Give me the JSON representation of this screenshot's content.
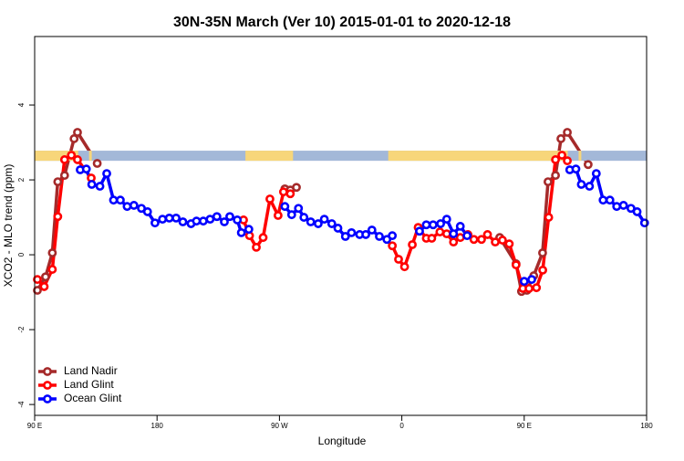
{
  "chart_data": {
    "type": "line",
    "title": "30N-35N March (Ver 10)   2015-01-01 to 2020-12-18",
    "x_label": "Longitude",
    "y_label": "XCO2 - MLO trend (ppm)",
    "xlim": [
      90,
      540
    ],
    "ylim": [
      -4.29,
      5.83
    ],
    "xticks": [
      {
        "value": 90,
        "label": "90 E"
      },
      {
        "value": 180,
        "label": "180"
      },
      {
        "value": 270,
        "label": "90 W"
      },
      {
        "value": 360,
        "label": "0"
      },
      {
        "value": 450,
        "label": "90 E"
      },
      {
        "value": 540,
        "label": "180"
      }
    ],
    "yticks": [
      -4,
      -2,
      0,
      2,
      4
    ],
    "legend": "bottom-left",
    "band": {
      "ylim": [
        2.51,
        2.78
      ],
      "ocean_color": "#a3b8d8",
      "land_color": "#f7d67a",
      "land_ranges": [
        [
          90,
          122
        ],
        [
          130,
          132
        ],
        [
          245,
          280
        ],
        [
          350,
          482
        ],
        [
          490,
          492
        ]
      ]
    },
    "series": [
      {
        "name": "Land Nadir",
        "color": "#a52a2a",
        "x": [
          92,
          98,
          103,
          107,
          112,
          119,
          121.5,
          136,
          null,
          274,
          278,
          282.5,
          null,
          432,
          444,
          448,
          452,
          457,
          463.5,
          467.5,
          473,
          477,
          481.7,
          497
        ],
        "values": [
          -0.95,
          -0.59,
          0.05,
          1.95,
          2.12,
          3.1,
          3.27,
          2.44,
          null,
          1.76,
          1.73,
          1.8,
          null,
          0.46,
          -0.24,
          -0.98,
          -0.95,
          -0.56,
          0.05,
          1.95,
          2.12,
          3.1,
          3.27,
          2.41
        ]
      },
      {
        "name": "Land Glint",
        "color": "#ff0000",
        "x": [
          92,
          97,
          103,
          107,
          112,
          117,
          121.5,
          131.6,
          null,
          243.6,
          248,
          253,
          258,
          263,
          269,
          273,
          278,
          null,
          353,
          357.6,
          362,
          367.7,
          372,
          378,
          382,
          388,
          393,
          398,
          403,
          408.6,
          413,
          418.6,
          423,
          428.7,
          434,
          439,
          444,
          449,
          453.5,
          459,
          463.6,
          468,
          473,
          477.7,
          481.7
        ],
        "values": [
          -0.66,
          -0.85,
          -0.39,
          1.02,
          2.54,
          2.66,
          2.54,
          2.05,
          null,
          0.93,
          0.51,
          0.2,
          0.46,
          1.49,
          1.05,
          1.68,
          1.63,
          null,
          0.24,
          -0.12,
          -0.32,
          0.27,
          0.73,
          0.44,
          0.44,
          0.61,
          0.56,
          0.34,
          0.46,
          0.54,
          0.41,
          0.41,
          0.54,
          0.34,
          0.39,
          0.29,
          -0.27,
          -0.9,
          -0.9,
          -0.88,
          -0.41,
          1.0,
          2.54,
          2.66,
          2.51
        ]
      },
      {
        "name": "Ocean Glint",
        "color": "#0000ff",
        "x": [
          123.5,
          128,
          132,
          138,
          143,
          148,
          153,
          158,
          163,
          168.5,
          173,
          178.5,
          184,
          189,
          194,
          199,
          205,
          209,
          214,
          219,
          224,
          229.5,
          233.5,
          239,
          242,
          247.5,
          null,
          274,
          279,
          284,
          288,
          293,
          298.5,
          303,
          308.5,
          313,
          318.5,
          323,
          329,
          333.5,
          338,
          343.5,
          349,
          353,
          null,
          373,
          378,
          383,
          388.5,
          393,
          398,
          403,
          408,
          null,
          450,
          455.5,
          null,
          483.5,
          488,
          492,
          498,
          503,
          508,
          513,
          518,
          523,
          528.5,
          533,
          538.5
        ],
        "values": [
          2.27,
          2.29,
          1.88,
          1.83,
          2.17,
          1.46,
          1.46,
          1.29,
          1.32,
          1.24,
          1.15,
          0.85,
          0.95,
          0.98,
          0.98,
          0.88,
          0.83,
          0.9,
          0.9,
          0.95,
          1.02,
          0.88,
          1.02,
          0.93,
          0.59,
          0.68,
          null,
          1.29,
          1.07,
          1.24,
          1.0,
          0.88,
          0.83,
          0.95,
          0.83,
          0.71,
          0.49,
          0.59,
          0.54,
          0.54,
          0.66,
          0.49,
          0.41,
          0.51,
          null,
          0.63,
          0.8,
          0.8,
          0.83,
          0.95,
          0.56,
          0.76,
          0.51,
          null,
          -0.71,
          -0.66,
          null,
          2.27,
          2.29,
          1.88,
          1.83,
          2.17,
          1.46,
          1.46,
          1.29,
          1.32,
          1.24,
          1.15,
          0.85
        ]
      }
    ]
  }
}
